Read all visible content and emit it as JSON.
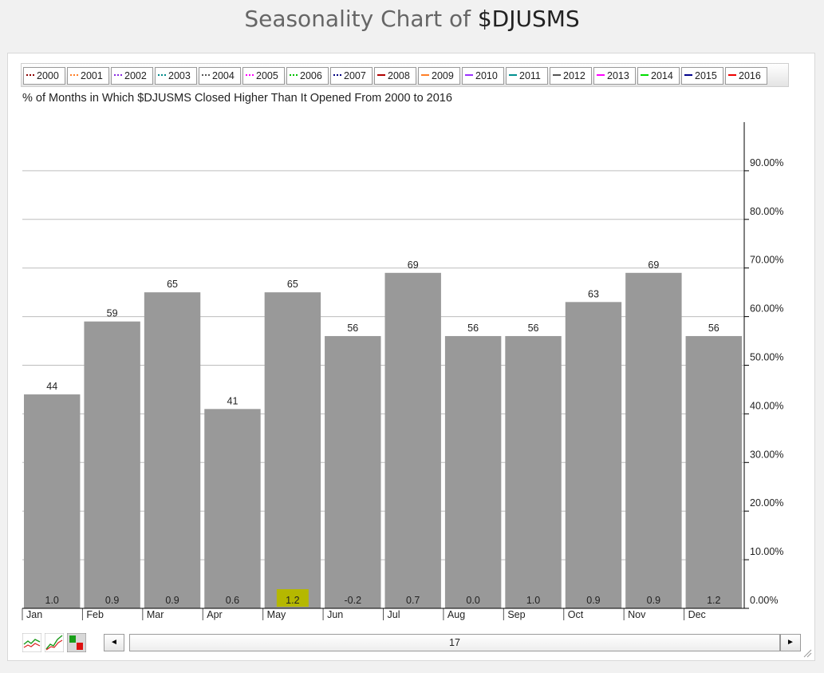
{
  "header": {
    "title_prefix": "Seasonality Chart of ",
    "title_symbol": "$DJUSMS"
  },
  "legend": {
    "items": [
      {
        "label": "2000",
        "color": "#8b0000",
        "style": "dotted"
      },
      {
        "label": "2001",
        "color": "#ff7f27",
        "style": "dotted"
      },
      {
        "label": "2002",
        "color": "#8a2be2",
        "style": "dotted"
      },
      {
        "label": "2003",
        "color": "#008b8b",
        "style": "dotted"
      },
      {
        "label": "2004",
        "color": "#555555",
        "style": "dotted"
      },
      {
        "label": "2005",
        "color": "#ff00ff",
        "style": "dotted"
      },
      {
        "label": "2006",
        "color": "#00c000",
        "style": "dotted"
      },
      {
        "label": "2007",
        "color": "#000080",
        "style": "dotted"
      },
      {
        "label": "2008",
        "color": "#b00000",
        "style": "solid"
      },
      {
        "label": "2009",
        "color": "#ff7f27",
        "style": "solid"
      },
      {
        "label": "2010",
        "color": "#9b30ff",
        "style": "solid"
      },
      {
        "label": "2011",
        "color": "#009090",
        "style": "solid"
      },
      {
        "label": "2012",
        "color": "#555555",
        "style": "solid"
      },
      {
        "label": "2013",
        "color": "#ff00ff",
        "style": "solid"
      },
      {
        "label": "2014",
        "color": "#00dd00",
        "style": "solid"
      },
      {
        "label": "2015",
        "color": "#00008b",
        "style": "solid"
      },
      {
        "label": "2016",
        "color": "#ee0000",
        "style": "solid"
      }
    ]
  },
  "chart_data": {
    "type": "bar",
    "title": "% of Months in Which $DJUSMS Closed Higher Than It Opened From 2000 to 2016",
    "categories": [
      "Jan",
      "Feb",
      "Mar",
      "Apr",
      "May",
      "Jun",
      "Jul",
      "Aug",
      "Sep",
      "Oct",
      "Nov",
      "Dec"
    ],
    "values": [
      44,
      59,
      65,
      41,
      65,
      56,
      69,
      56,
      56,
      63,
      69,
      56
    ],
    "value_labels": [
      "44",
      "59",
      "65",
      "41",
      "65",
      "56",
      "69",
      "56",
      "56",
      "63",
      "69",
      "56"
    ],
    "avg_change_labels": [
      "1.0",
      "0.9",
      "0.9",
      "0.6",
      "1.2",
      "-0.2",
      "0.7",
      "0.0",
      "1.0",
      "0.9",
      "0.9",
      "1.2"
    ],
    "highlighted_category": "May",
    "highlight_color": "#b5b800",
    "bar_color": "#999999",
    "y_tick_labels": [
      "0.00%",
      "10.00%",
      "20.00%",
      "30.00%",
      "40.00%",
      "50.00%",
      "60.00%",
      "70.00%",
      "80.00%",
      "90.00%"
    ],
    "y_ticks": [
      0,
      10,
      20,
      30,
      40,
      50,
      60,
      70,
      80,
      90
    ],
    "ylim": [
      0,
      100
    ],
    "y_axis_position": "right",
    "grid": true
  },
  "toolbar": {
    "icons": [
      "line-chart-icon",
      "performance-chart-icon",
      "seasonality-bar-icon"
    ],
    "scroll_value": "17",
    "scroll_left_glyph": "◄",
    "scroll_right_glyph": "►"
  }
}
